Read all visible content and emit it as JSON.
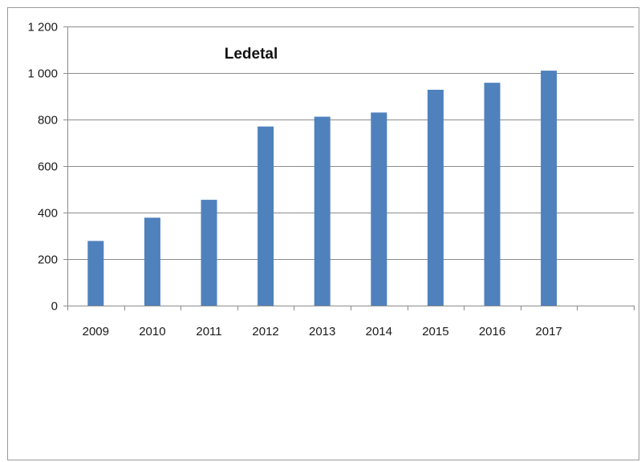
{
  "chart_data": {
    "type": "bar",
    "title": "Ledetal",
    "xlabel": "",
    "ylabel": "",
    "categories": [
      "2009",
      "2010",
      "2011",
      "2012",
      "2013",
      "2014",
      "2015",
      "2016",
      "2017"
    ],
    "values": [
      278,
      378,
      455,
      770,
      812,
      830,
      928,
      958,
      1010
    ],
    "ylim": [
      0,
      1200
    ],
    "yticks": [
      0,
      200,
      400,
      600,
      800,
      1000,
      1200
    ],
    "ytick_labels": [
      "0",
      "200",
      "400",
      "600",
      "800",
      "1 000",
      "1 200"
    ],
    "grid": "horizontal",
    "legend": "none",
    "colors": {
      "bar": "#4f81bd",
      "grid": "#8c8c8c",
      "axis": "#8c8c8c"
    }
  }
}
